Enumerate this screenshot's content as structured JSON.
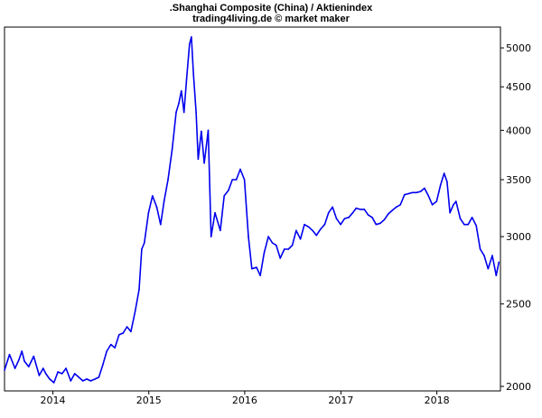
{
  "chart_data": {
    "type": "line",
    "title": ".Shanghai Composite (China) / Aktienindex",
    "subtitle": "trading4living.de © market maker",
    "xlabel": "",
    "ylabel": "",
    "y_scale": "log",
    "ylim": [
      2000,
      5200
    ],
    "xlim": [
      "2013-07-01",
      "2018-08-31"
    ],
    "y_ticks": [
      2000,
      2500,
      3000,
      3500,
      4000,
      4500,
      5000
    ],
    "y_tick_labels": [
      "2000",
      "2500",
      "3000",
      "3500",
      "4000",
      "4500",
      "5000"
    ],
    "x_tick_labels": [
      "2014",
      "2015",
      "2016",
      "2017",
      "2018"
    ],
    "x_ticks": [
      "2014-01-01",
      "2015-01-01",
      "2016-01-01",
      "2017-01-01",
      "2018-01-01"
    ],
    "grid": false,
    "line_color": "#0000ee",
    "series": [
      {
        "x": [
          "2013-07-01",
          "2013-07-20",
          "2013-08-10",
          "2013-08-25",
          "2013-09-05",
          "2013-09-15",
          "2013-10-01",
          "2013-10-20",
          "2013-11-10",
          "2013-11-25",
          "2013-12-05",
          "2013-12-20",
          "2014-01-05",
          "2014-01-20",
          "2014-02-05",
          "2014-02-20",
          "2014-03-10",
          "2014-03-25",
          "2014-04-10",
          "2014-04-25",
          "2014-05-10",
          "2014-05-25",
          "2014-06-10",
          "2014-06-25",
          "2014-07-10",
          "2014-07-25",
          "2014-08-10",
          "2014-08-25",
          "2014-09-10",
          "2014-09-25",
          "2014-10-10",
          "2014-10-25",
          "2014-11-10",
          "2014-11-25",
          "2014-12-05",
          "2014-12-15",
          "2014-12-31",
          "2015-01-15",
          "2015-01-31",
          "2015-02-15",
          "2015-02-28",
          "2015-03-15",
          "2015-03-31",
          "2015-04-15",
          "2015-04-25",
          "2015-05-05",
          "2015-05-15",
          "2015-05-25",
          "2015-06-05",
          "2015-06-12",
          "2015-06-20",
          "2015-06-30",
          "2015-07-08",
          "2015-07-20",
          "2015-07-31",
          "2015-08-15",
          "2015-08-26",
          "2015-09-10",
          "2015-09-30",
          "2015-10-15",
          "2015-10-31",
          "2015-11-15",
          "2015-11-30",
          "2015-12-15",
          "2015-12-31",
          "2016-01-15",
          "2016-01-28",
          "2016-02-15",
          "2016-02-29",
          "2016-03-15",
          "2016-03-31",
          "2016-04-15",
          "2016-04-30",
          "2016-05-15",
          "2016-05-31",
          "2016-06-15",
          "2016-06-30",
          "2016-07-15",
          "2016-07-31",
          "2016-08-15",
          "2016-08-31",
          "2016-09-15",
          "2016-09-30",
          "2016-10-15",
          "2016-10-31",
          "2016-11-15",
          "2016-11-30",
          "2016-12-15",
          "2016-12-31",
          "2017-01-15",
          "2017-01-31",
          "2017-02-15",
          "2017-02-28",
          "2017-03-15",
          "2017-03-31",
          "2017-04-15",
          "2017-04-30",
          "2017-05-15",
          "2017-05-31",
          "2017-06-15",
          "2017-06-30",
          "2017-07-15",
          "2017-07-31",
          "2017-08-15",
          "2017-08-31",
          "2017-09-15",
          "2017-09-30",
          "2017-10-15",
          "2017-10-31",
          "2017-11-15",
          "2017-11-30",
          "2017-12-15",
          "2017-12-31",
          "2018-01-15",
          "2018-01-29",
          "2018-02-09",
          "2018-02-20",
          "2018-03-05",
          "2018-03-15",
          "2018-03-31",
          "2018-04-15",
          "2018-04-30",
          "2018-05-15",
          "2018-05-31",
          "2018-06-15",
          "2018-06-30",
          "2018-07-15",
          "2018-07-31",
          "2018-08-15",
          "2018-08-25"
        ],
        "values": [
          2090,
          2180,
          2100,
          2150,
          2200,
          2140,
          2110,
          2170,
          2060,
          2100,
          2070,
          2040,
          2020,
          2080,
          2070,
          2100,
          2030,
          2070,
          2050,
          2030,
          2040,
          2030,
          2040,
          2050,
          2120,
          2200,
          2240,
          2220,
          2300,
          2310,
          2350,
          2320,
          2450,
          2600,
          2900,
          2950,
          3200,
          3350,
          3250,
          3100,
          3300,
          3500,
          3800,
          4200,
          4300,
          4450,
          4200,
          4600,
          5050,
          5150,
          4650,
          4200,
          3700,
          3990,
          3660,
          4000,
          3000,
          3200,
          3050,
          3350,
          3400,
          3500,
          3500,
          3600,
          3500,
          3000,
          2750,
          2760,
          2700,
          2870,
          3000,
          2950,
          2930,
          2830,
          2900,
          2900,
          2930,
          3050,
          2980,
          3100,
          3080,
          3050,
          3010,
          3060,
          3100,
          3200,
          3250,
          3150,
          3100,
          3150,
          3160,
          3200,
          3240,
          3230,
          3230,
          3180,
          3160,
          3100,
          3110,
          3140,
          3190,
          3220,
          3250,
          3270,
          3360,
          3370,
          3380,
          3380,
          3390,
          3420,
          3350,
          3270,
          3300,
          3450,
          3560,
          3480,
          3200,
          3270,
          3300,
          3150,
          3100,
          3100,
          3160,
          3090,
          2900,
          2850,
          2750,
          2850,
          2700,
          2800
        ]
      }
    ]
  }
}
